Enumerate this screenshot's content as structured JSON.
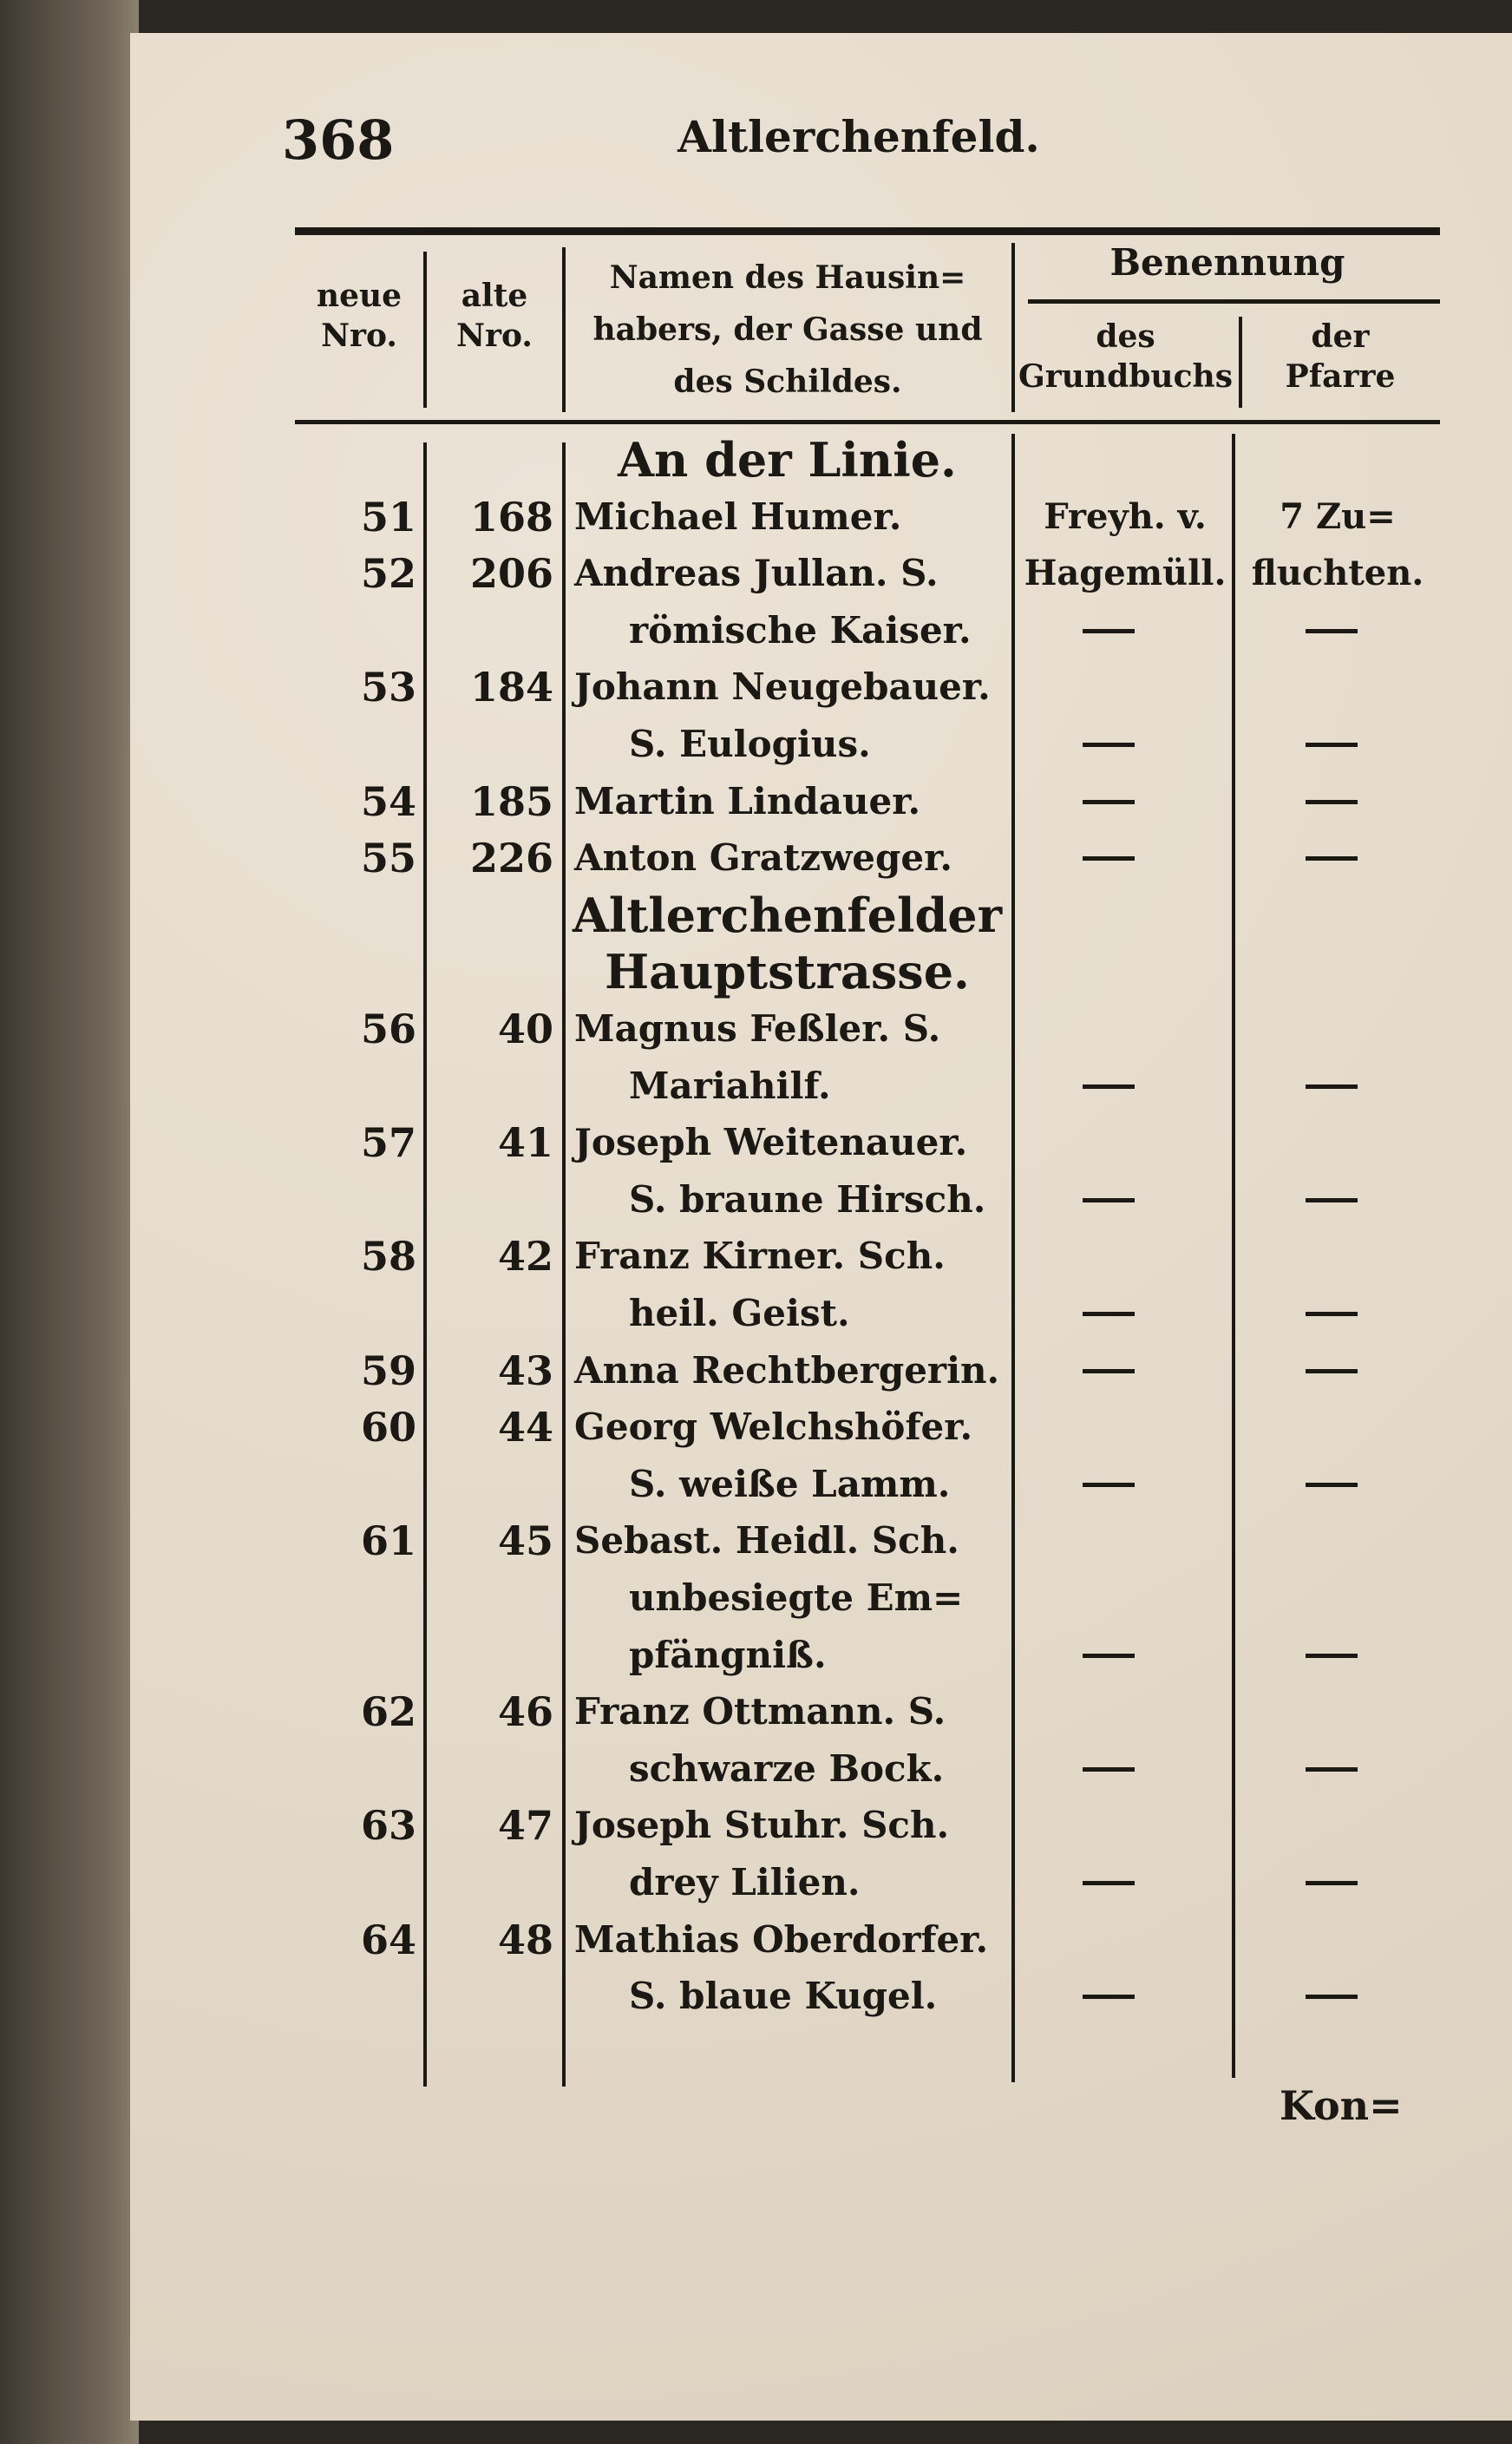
{
  "page": {
    "number": "368",
    "running_title": "Altlerchenfeld."
  },
  "header": {
    "neue_nro": [
      "neue",
      "Nro."
    ],
    "alte_nro": [
      "alte",
      "Nro."
    ],
    "namen": [
      "Namen des Hausin=",
      "habers, der Gasse und",
      "des Schildes."
    ],
    "benennung": "Benennung",
    "grundbuch": [
      "des",
      "Grundbuchs"
    ],
    "pfarre": [
      "der",
      "Pfarre"
    ]
  },
  "entries": [
    {
      "street": "An der Linie."
    },
    {
      "neu": "51",
      "alt": "168",
      "lines": [
        "Michael Humer."
      ],
      "grundbuch": [
        "Freyh. v.",
        "Hagemüll."
      ],
      "pfarre": [
        "7 Zu=",
        "fluchten."
      ]
    },
    {
      "neu": "52",
      "alt": "206",
      "lines": [
        "Andreas Jullan. S.",
        "römische Kaiser."
      ],
      "grundbuch": "—",
      "pfarre": "—"
    },
    {
      "neu": "53",
      "alt": "184",
      "lines": [
        "Johann Neugebauer.",
        "S. Eulogius."
      ],
      "grundbuch": "—",
      "pfarre": "—"
    },
    {
      "neu": "54",
      "alt": "185",
      "lines": [
        "Martin Lindauer."
      ],
      "grundbuch": "—",
      "pfarre": "—"
    },
    {
      "neu": "55",
      "alt": "226",
      "lines": [
        "Anton Gratzweger."
      ],
      "grundbuch": "—",
      "pfarre": "—"
    },
    {
      "street": [
        "Altlerchenfelder",
        "Hauptstrasse."
      ]
    },
    {
      "neu": "56",
      "alt": "40",
      "lines": [
        "Magnus Feßler. S.",
        "Mariahilf."
      ],
      "grundbuch": "—",
      "pfarre": "—"
    },
    {
      "neu": "57",
      "alt": "41",
      "lines": [
        "Joseph Weitenauer.",
        "S. braune Hirsch."
      ],
      "grundbuch": "—",
      "pfarre": "—"
    },
    {
      "neu": "58",
      "alt": "42",
      "lines": [
        "Franz Kirner. Sch.",
        "heil. Geist."
      ],
      "grundbuch": "—",
      "pfarre": "—"
    },
    {
      "neu": "59",
      "alt": "43",
      "lines": [
        "Anna Rechtbergerin."
      ],
      "grundbuch": "—",
      "pfarre": "—"
    },
    {
      "neu": "60",
      "alt": "44",
      "lines": [
        "Georg Welchshöfer.",
        "S. weiße Lamm."
      ],
      "grundbuch": "—",
      "pfarre": "—"
    },
    {
      "neu": "61",
      "alt": "45",
      "lines": [
        "Sebast. Heidl. Sch.",
        "unbesiegte Em=",
        "pfängniß."
      ],
      "grundbuch": "—",
      "pfarre": "—"
    },
    {
      "neu": "62",
      "alt": "46",
      "lines": [
        "Franz Ottmann. S.",
        "schwarze Bock."
      ],
      "grundbuch": "—",
      "pfarre": "—"
    },
    {
      "neu": "63",
      "alt": "47",
      "lines": [
        "Joseph Stuhr. Sch.",
        "drey Lilien."
      ],
      "grundbuch": "—",
      "pfarre": "—"
    },
    {
      "neu": "64",
      "alt": "48",
      "lines": [
        "Mathias Oberdorfer.",
        "S. blaue Kugel."
      ],
      "grundbuch": "—",
      "pfarre": "—"
    }
  ],
  "catchword": "Kon="
}
